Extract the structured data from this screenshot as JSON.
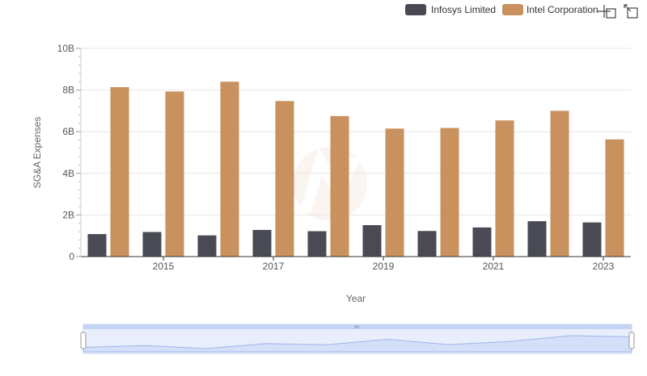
{
  "legend": {
    "items": [
      {
        "label": "Infosys Limited",
        "color": "#4a4a55"
      },
      {
        "label": "Intel Corporation",
        "color": "#c8915e"
      }
    ]
  },
  "toolbar": {
    "icons": [
      "zoom-select-icon",
      "zoom-reset-icon"
    ]
  },
  "chart_data": {
    "type": "bar",
    "xlabel": "Year",
    "ylabel": "SG&A Expenses",
    "x_ticks": [
      "2015",
      "2017",
      "2019",
      "2021",
      "2023"
    ],
    "y_ticks": [
      "0",
      "2B",
      "4B",
      "6B",
      "8B",
      "10B"
    ],
    "ylim": [
      0,
      10000000000
    ],
    "grid": "horizontal",
    "legend_position": "top-right",
    "categories": [
      "2014",
      "2015",
      "2016",
      "2017",
      "2018",
      "2019",
      "2020",
      "2021",
      "2022",
      "2023"
    ],
    "series": [
      {
        "name": "Infosys Limited",
        "color": "#4a4a55",
        "values": [
          1080000000,
          1180000000,
          1020000000,
          1280000000,
          1220000000,
          1510000000,
          1230000000,
          1400000000,
          1700000000,
          1640000000
        ]
      },
      {
        "name": "Intel Corporation",
        "color": "#c8915e",
        "values": [
          8140000000,
          7930000000,
          8400000000,
          7470000000,
          6750000000,
          6150000000,
          6180000000,
          6540000000,
          7000000000,
          5630000000
        ]
      }
    ],
    "navigator": {
      "series_values": [
        1080000000,
        1180000000,
        1020000000,
        1280000000,
        1220000000,
        1510000000,
        1230000000,
        1400000000,
        1700000000,
        1640000000
      ]
    }
  }
}
